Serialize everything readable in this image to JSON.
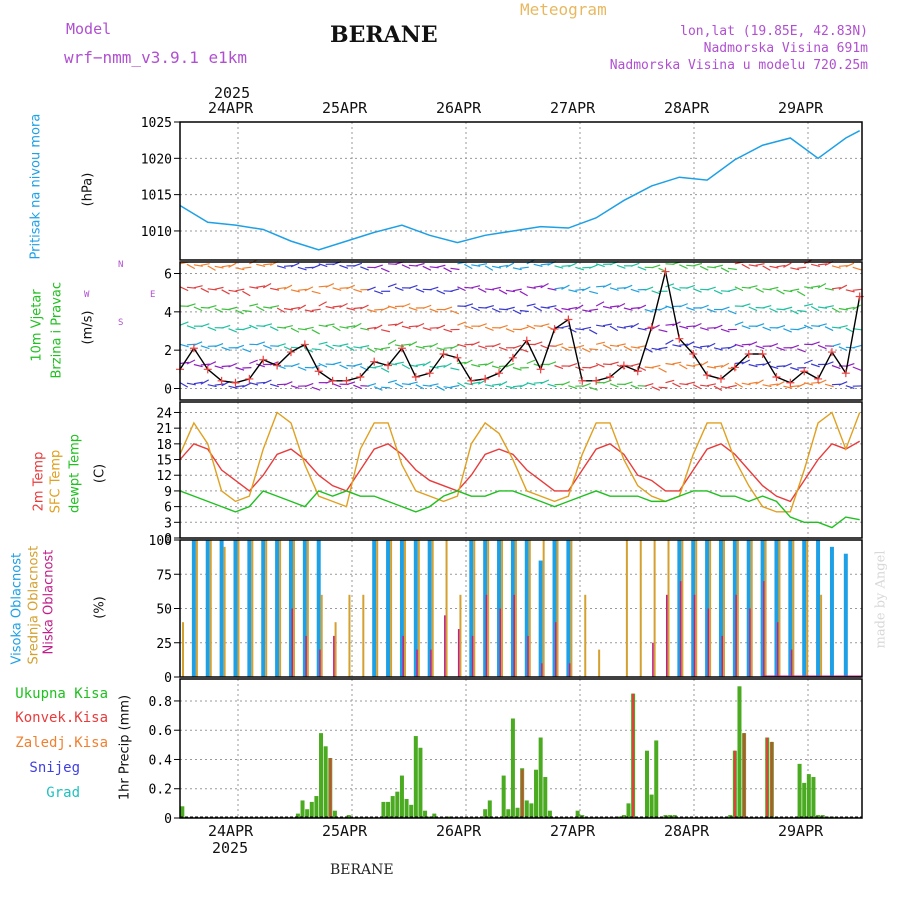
{
  "header": {
    "model_label": "Model",
    "model_name": "wrf−nmm_v3.9.1  e1km",
    "station": "BERANE",
    "title": "Meteogram",
    "lonlat": "lon,lat (19.85E, 42.83N)",
    "elevation": "Nadmorska Visina 691m",
    "model_elevation": "Nadmorska Visina u modelu 720.25m"
  },
  "footer": {
    "station": "BERANE",
    "credit": "made by Angel"
  },
  "colors": {
    "pressure": "#1ea0e6",
    "temp2m": "#e83c3c",
    "sfctemp": "#e0a020",
    "dewpt": "#20c020",
    "high_cloud": "#1ea0e6",
    "mid_cloud": "#d4a030",
    "low_cloud": "#c0208a",
    "total_precip": "#4aaa20",
    "conv_precip": "#e83c3c",
    "wind_speed": "#000000",
    "wind_marker": "#f04040"
  },
  "axis": {
    "top_year": "2025",
    "bottom_year": "2025",
    "day_labels": [
      "24APR",
      "25APR",
      "26APR",
      "27APR",
      "28APR",
      "29APR"
    ]
  },
  "chart_data": [
    {
      "type": "line",
      "panel": "pressure",
      "ylabel": "Pritisak na nivou mora",
      "unit": "(hPa)",
      "ylim": [
        1006,
        1025
      ],
      "yticks": [
        1010,
        1015,
        1020,
        1025
      ],
      "grid": true,
      "x_hours": [
        0,
        6,
        12,
        18,
        24,
        30,
        36,
        42,
        48,
        54,
        60,
        66,
        72,
        78,
        84,
        90,
        96,
        102,
        108,
        114,
        120,
        126,
        132,
        138,
        144,
        147
      ],
      "series": [
        {
          "values": [
            1013.5,
            1011.2,
            1010.8,
            1010.2,
            1008.6,
            1007.4,
            1008.6,
            1009.8,
            1010.8,
            1009.4,
            1008.4,
            1009.4,
            1010.0,
            1010.6,
            1010.4,
            1011.8,
            1014.2,
            1016.2,
            1017.4,
            1017.0,
            1019.8,
            1021.8,
            1022.8,
            1020.0,
            1022.8,
            1023.8
          ]
        }
      ]
    },
    {
      "type": "line",
      "panel": "wind",
      "ylabel": "10m Vjetar Brzina i Pravac",
      "unit": "(m/s)",
      "compass": [
        "N",
        "W",
        "E",
        "S"
      ],
      "ylim": [
        -0.6,
        6.6
      ],
      "yticks": [
        0,
        2,
        4,
        6
      ],
      "grid": true,
      "x_hours": [
        0,
        3,
        6,
        9,
        12,
        15,
        18,
        21,
        24,
        27,
        30,
        33,
        36,
        39,
        42,
        45,
        48,
        51,
        54,
        57,
        60,
        63,
        66,
        69,
        72,
        75,
        78,
        81,
        84,
        87,
        90,
        93,
        96,
        99,
        102,
        105,
        108,
        111,
        114,
        117,
        120,
        123,
        126,
        129,
        132,
        135,
        138,
        141,
        144,
        147
      ],
      "series": [
        {
          "name": "",
          "values": [
            1.0,
            2.1,
            1.0,
            0.4,
            0.3,
            0.5,
            1.5,
            1.2,
            1.9,
            2.3,
            0.9,
            0.4,
            0.4,
            0.6,
            1.4,
            1.2,
            2.1,
            0.6,
            0.8,
            1.8,
            1.6,
            0.4,
            0.5,
            0.8,
            1.6,
            2.5,
            1.0,
            3.1,
            3.6,
            0.4,
            0.4,
            0.6,
            1.2,
            0.9,
            3.2,
            6.1,
            2.6,
            1.8,
            0.7,
            0.5,
            1.1,
            1.8,
            1.8,
            0.6,
            0.3,
            0.9,
            0.5,
            1.9,
            0.8,
            4.8
          ]
        }
      ]
    },
    {
      "type": "line",
      "panel": "temperature",
      "ylabel": [
        "2m Temp",
        "SFC Temp",
        "dewpt Temp"
      ],
      "unit": "(C)",
      "ylim": [
        0,
        26
      ],
      "yticks": [
        0,
        3,
        6,
        9,
        12,
        15,
        18,
        21,
        24
      ],
      "grid": true,
      "x_hours": [
        0,
        3,
        6,
        9,
        12,
        15,
        18,
        21,
        24,
        27,
        30,
        33,
        36,
        39,
        42,
        45,
        48,
        51,
        54,
        57,
        60,
        63,
        66,
        69,
        72,
        75,
        78,
        81,
        84,
        87,
        90,
        93,
        96,
        99,
        102,
        105,
        108,
        111,
        114,
        117,
        120,
        123,
        126,
        129,
        132,
        135,
        138,
        141,
        144,
        147
      ],
      "series": [
        {
          "name": "2m Temp",
          "values": [
            15,
            18,
            17,
            13,
            11,
            9,
            12,
            16,
            17,
            15,
            12,
            10,
            9,
            13,
            17,
            18,
            16,
            13,
            11,
            10,
            9,
            12,
            16,
            17,
            16,
            13,
            11,
            9,
            9,
            13,
            17,
            18,
            16,
            12,
            11,
            9,
            9,
            13,
            17,
            18,
            16,
            13,
            10,
            8,
            7,
            11,
            15,
            18,
            17,
            18.5
          ]
        },
        {
          "name": "SFC Temp",
          "values": [
            16,
            22,
            18,
            9,
            7,
            8,
            17,
            24,
            22,
            14,
            8,
            7,
            6,
            17,
            22,
            22,
            14,
            9,
            8,
            7,
            8,
            18,
            22,
            20,
            15,
            9,
            8,
            7,
            8,
            16,
            22,
            22,
            15,
            10,
            8,
            7,
            8,
            16,
            22,
            22,
            15,
            10,
            6,
            5,
            5,
            13,
            22,
            24,
            17,
            24
          ]
        },
        {
          "name": "dewpt Temp",
          "values": [
            9,
            8,
            7,
            6,
            5,
            6,
            9,
            8,
            7,
            6,
            9,
            8,
            9,
            8,
            8,
            7,
            6,
            5,
            6,
            8,
            9,
            8,
            8,
            9,
            9,
            8,
            7,
            6,
            7,
            8,
            9,
            8,
            8,
            8,
            7,
            7,
            8,
            9,
            9,
            8,
            8,
            7,
            8,
            7,
            4,
            3,
            3,
            2,
            4,
            3.5
          ]
        }
      ]
    },
    {
      "type": "bar",
      "panel": "clouds",
      "ylabel": [
        "Visoka Oblacnost",
        "Srednja Oblacnost",
        "Niska Oblacnost"
      ],
      "unit": "(%)",
      "ylim": [
        0,
        100
      ],
      "yticks": [
        0,
        25,
        50,
        75,
        100
      ],
      "grid": true,
      "x_hours": [
        0,
        3,
        6,
        9,
        12,
        15,
        18,
        21,
        24,
        27,
        30,
        33,
        36,
        39,
        42,
        45,
        48,
        51,
        54,
        57,
        60,
        63,
        66,
        69,
        72,
        75,
        78,
        81,
        84,
        87,
        90,
        93,
        96,
        99,
        102,
        105,
        108,
        111,
        114,
        117,
        120,
        123,
        126,
        129,
        132,
        135,
        138,
        141,
        144,
        147
      ],
      "series": [
        {
          "name": "Visoka Oblacnost",
          "values": [
            0,
            100,
            100,
            100,
            100,
            100,
            100,
            100,
            100,
            100,
            100,
            0,
            0,
            0,
            100,
            100,
            100,
            100,
            100,
            0,
            0,
            100,
            100,
            100,
            100,
            100,
            85,
            100,
            100,
            0,
            0,
            0,
            0,
            0,
            0,
            0,
            100,
            100,
            100,
            100,
            100,
            100,
            100,
            100,
            100,
            100,
            100,
            95,
            90,
            0
          ]
        },
        {
          "name": "Srednja Oblacnost",
          "values": [
            40,
            100,
            100,
            95,
            100,
            100,
            100,
            100,
            100,
            100,
            60,
            40,
            60,
            60,
            100,
            100,
            100,
            100,
            100,
            100,
            60,
            100,
            100,
            100,
            100,
            100,
            100,
            100,
            100,
            60,
            20,
            0,
            100,
            100,
            100,
            100,
            100,
            100,
            100,
            100,
            100,
            100,
            100,
            100,
            100,
            100,
            60,
            0,
            0,
            0
          ]
        },
        {
          "name": "Niska Oblacnost",
          "values": [
            0,
            0,
            0,
            0,
            0,
            0,
            0,
            0,
            50,
            30,
            20,
            30,
            0,
            0,
            0,
            0,
            30,
            20,
            20,
            45,
            35,
            30,
            60,
            50,
            60,
            30,
            10,
            40,
            10,
            0,
            0,
            0,
            0,
            0,
            25,
            60,
            70,
            60,
            50,
            30,
            60,
            50,
            70,
            40,
            20,
            0,
            0,
            0,
            0,
            0
          ]
        }
      ]
    },
    {
      "type": "bar",
      "panel": "precipitation",
      "ylabel": "1hr Precip (mm)",
      "legend": [
        "Ukupna Kisa",
        "Konvek.Kisa",
        "Zaledj.Kisa",
        "Snijeg",
        "Grad"
      ],
      "ylim": [
        0,
        0.95
      ],
      "yticks": [
        0,
        0.2,
        0.4,
        0.6,
        0.8
      ],
      "grid": true,
      "x_hours": [
        0.5,
        25.5,
        26.5,
        27.5,
        28.5,
        29.5,
        30.5,
        31.5,
        32.5,
        33.5,
        36.5,
        44,
        45,
        46,
        47,
        48,
        49,
        50,
        51,
        52,
        53,
        54,
        55,
        58,
        66,
        67,
        70,
        71,
        72,
        73,
        74,
        75,
        76,
        77,
        78,
        79,
        80,
        86,
        87,
        95,
        96,
        97,
        98,
        101,
        102,
        103,
        105,
        106,
        107,
        119,
        120,
        121,
        122,
        127,
        128,
        134,
        135,
        136,
        137,
        138,
        139,
        140,
        141
      ],
      "series": [
        {
          "name": "Ukupna Kisa",
          "values": [
            0.08,
            0.03,
            0.12,
            0.06,
            0.11,
            0.15,
            0.58,
            0.49,
            0.41,
            0.05,
            0.02,
            0.11,
            0.11,
            0.15,
            0.18,
            0.29,
            0.13,
            0.09,
            0.56,
            0.48,
            0.05,
            0.01,
            0.03,
            0.01,
            0.06,
            0.12,
            0.29,
            0.06,
            0.68,
            0.07,
            0.34,
            0.12,
            0.1,
            0.33,
            0.55,
            0.28,
            0.05,
            0.05,
            0.02,
            0.01,
            0.02,
            0.1,
            0.85,
            0.46,
            0.16,
            0.53,
            0.02,
            0.02,
            0.02,
            0.02,
            0.46,
            0.9,
            0.58,
            0.55,
            0.52,
            0.37,
            0.24,
            0.3,
            0.28,
            0.02,
            0.02,
            0.01,
            0.01
          ]
        },
        {
          "name": "Konvek.Kisa",
          "values": [
            0,
            0,
            0,
            0,
            0,
            0,
            0,
            0,
            0.41,
            0,
            0,
            0,
            0,
            0,
            0,
            0,
            0,
            0,
            0,
            0,
            0,
            0,
            0,
            0,
            0,
            0,
            0,
            0,
            0,
            0,
            0.33,
            0,
            0,
            0,
            0,
            0,
            0,
            0,
            0,
            0,
            0,
            0,
            0.85,
            0,
            0,
            0,
            0,
            0,
            0,
            0,
            0.46,
            0,
            0.58,
            0.55,
            0.52,
            0,
            0,
            0,
            0,
            0,
            0,
            0,
            0
          ]
        }
      ]
    }
  ]
}
